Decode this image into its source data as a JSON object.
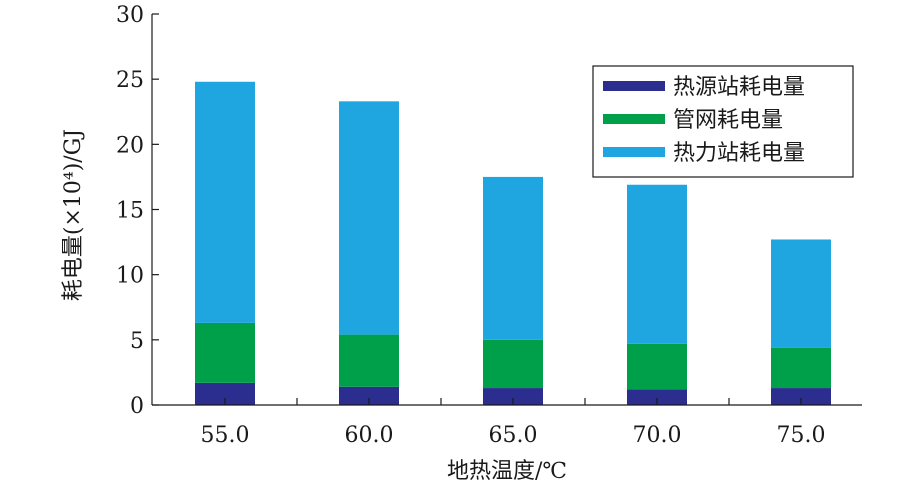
{
  "chart_data": {
    "type": "bar",
    "stacked": true,
    "title": "",
    "xlabel": "地热温度/℃",
    "ylabel": "耗电量(×10⁴)/GJ",
    "ylim": [
      0,
      30
    ],
    "yticks": [
      0,
      5,
      10,
      15,
      20,
      25,
      30
    ],
    "categories": [
      "55.0",
      "60.0",
      "65.0",
      "70.0",
      "75.0"
    ],
    "series": [
      {
        "name": "热源站耗电量",
        "color": "#2b2e8e",
        "values": [
          1.7,
          1.4,
          1.3,
          1.2,
          1.3
        ]
      },
      {
        "name": "管网耗电量",
        "color": "#00a04b",
        "values": [
          4.6,
          4.0,
          3.7,
          3.5,
          3.1
        ]
      },
      {
        "name": "热力站耗电量",
        "color": "#1fa6e0",
        "values": [
          18.5,
          17.9,
          12.5,
          12.2,
          8.3
        ]
      }
    ],
    "legend_position": "top-right",
    "grid": false
  }
}
